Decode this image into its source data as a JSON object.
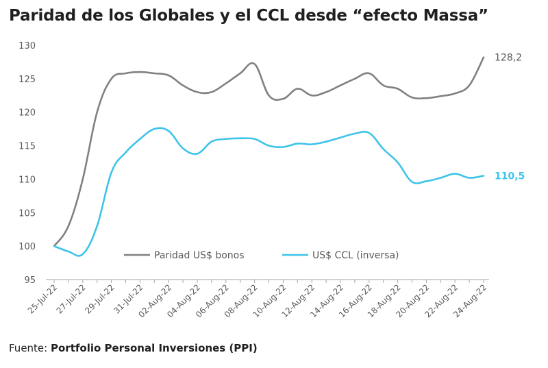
{
  "title": "Paridad de los Globales y el CCL desde “efecto Massa”",
  "source": {
    "prefix": "Fuente:",
    "name": "Portfolio Personal Inversiones (PPI)"
  },
  "colors": {
    "paridad": "#808080",
    "ccl": "#3ec3ea",
    "axis": "#a6a6a6",
    "text": "#595959"
  },
  "chart_data": {
    "type": "line",
    "x": [
      "25-Jul-22",
      "26-Jul-22",
      "27-Jul-22",
      "28-Jul-22",
      "29-Jul-22",
      "30-Jul-22",
      "31-Jul-22",
      "01-Aug-22",
      "02-Aug-22",
      "03-Aug-22",
      "04-Aug-22",
      "05-Aug-22",
      "06-Aug-22",
      "07-Aug-22",
      "08-Aug-22",
      "09-Aug-22",
      "10-Aug-22",
      "11-Aug-22",
      "12-Aug-22",
      "13-Aug-22",
      "14-Aug-22",
      "15-Aug-22",
      "16-Aug-22",
      "17-Aug-22",
      "18-Aug-22",
      "19-Aug-22",
      "20-Aug-22",
      "21-Aug-22",
      "22-Aug-22",
      "23-Aug-22",
      "24-Aug-22"
    ],
    "xticks": [
      "25-Jul-22",
      "27-Jul-22",
      "29-Jul-22",
      "31-Jul-22",
      "02-Aug-22",
      "04-Aug-22",
      "06-Aug-22",
      "08-Aug-22",
      "10-Aug-22",
      "12-Aug-22",
      "14-Aug-22",
      "16-Aug-22",
      "18-Aug-22",
      "20-Aug-22",
      "22-Aug-22",
      "24-Aug-22"
    ],
    "series": [
      {
        "name": "Paridad US$ bonos",
        "values": [
          100,
          103,
          110,
          120,
          125,
          125.8,
          126,
          125.8,
          125.5,
          124,
          123,
          123,
          124.3,
          125.8,
          127.2,
          122.5,
          122,
          123.5,
          122.5,
          123,
          124,
          125,
          125.8,
          124,
          123.5,
          122.2,
          122.1,
          122.4,
          122.8,
          124,
          128.2
        ],
        "end_label": "128,2"
      },
      {
        "name": "US$ CCL (inversa)",
        "values": [
          100,
          99.2,
          98.8,
          103,
          111,
          114,
          116,
          117.5,
          117.2,
          114.6,
          113.8,
          115.6,
          116,
          116.1,
          116,
          115,
          114.8,
          115.3,
          115.2,
          115.6,
          116.2,
          116.8,
          116.9,
          114.5,
          112.5,
          109.6,
          109.7,
          110.2,
          110.8,
          110.2,
          110.5
        ],
        "end_label": "110,5"
      }
    ],
    "yticks": [
      95,
      100,
      105,
      110,
      115,
      120,
      125,
      130
    ],
    "ylim": [
      95,
      130
    ],
    "grid": false,
    "legend_position": "bottom-center"
  }
}
